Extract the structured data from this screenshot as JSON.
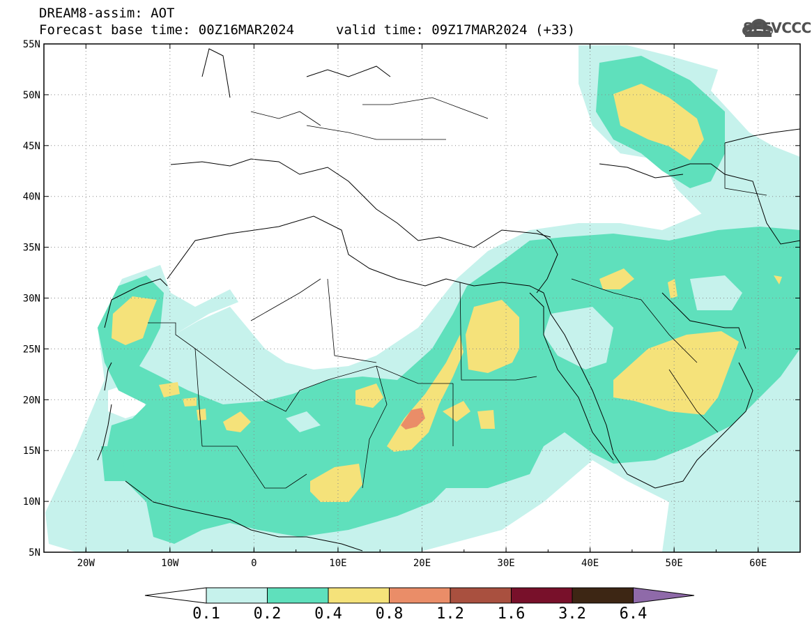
{
  "header": {
    "product": "DREAM8-assim: AOT",
    "base_time": "Forecast base time: 00Z16MAR2024",
    "valid_time": "valid time: 09Z17MAR2024 (+33)"
  },
  "logo": {
    "text": "SEEVCCC",
    "icon": "cloud-icon"
  },
  "map": {
    "lon_labels": [
      "20W",
      "10W",
      "0",
      "10E",
      "20E",
      "30E",
      "40E",
      "50E",
      "60E"
    ],
    "lat_labels": [
      "55N",
      "50N",
      "45N",
      "40N",
      "35N",
      "30N",
      "25N",
      "20N",
      "15N",
      "10N",
      "5N"
    ],
    "lon_range": [
      -25,
      65
    ],
    "lat_range": [
      5,
      55
    ]
  },
  "colorbar": {
    "labels": [
      "0.1",
      "0.2",
      "0.4",
      "0.8",
      "1.2",
      "1.6",
      "3.2",
      "6.4"
    ],
    "colors": [
      "#c6f2ec",
      "#5fe0bc",
      "#f5e27a",
      "#ea8d68",
      "#a9503f",
      "#78102a",
      "#3d2614",
      "#8f6aa9"
    ]
  },
  "colors": {
    "aot_01_02": "#c6f2ec",
    "aot_02_04": "#5fe0bc",
    "aot_04_08": "#f5e27a",
    "aot_08_12": "#ea8d68"
  }
}
